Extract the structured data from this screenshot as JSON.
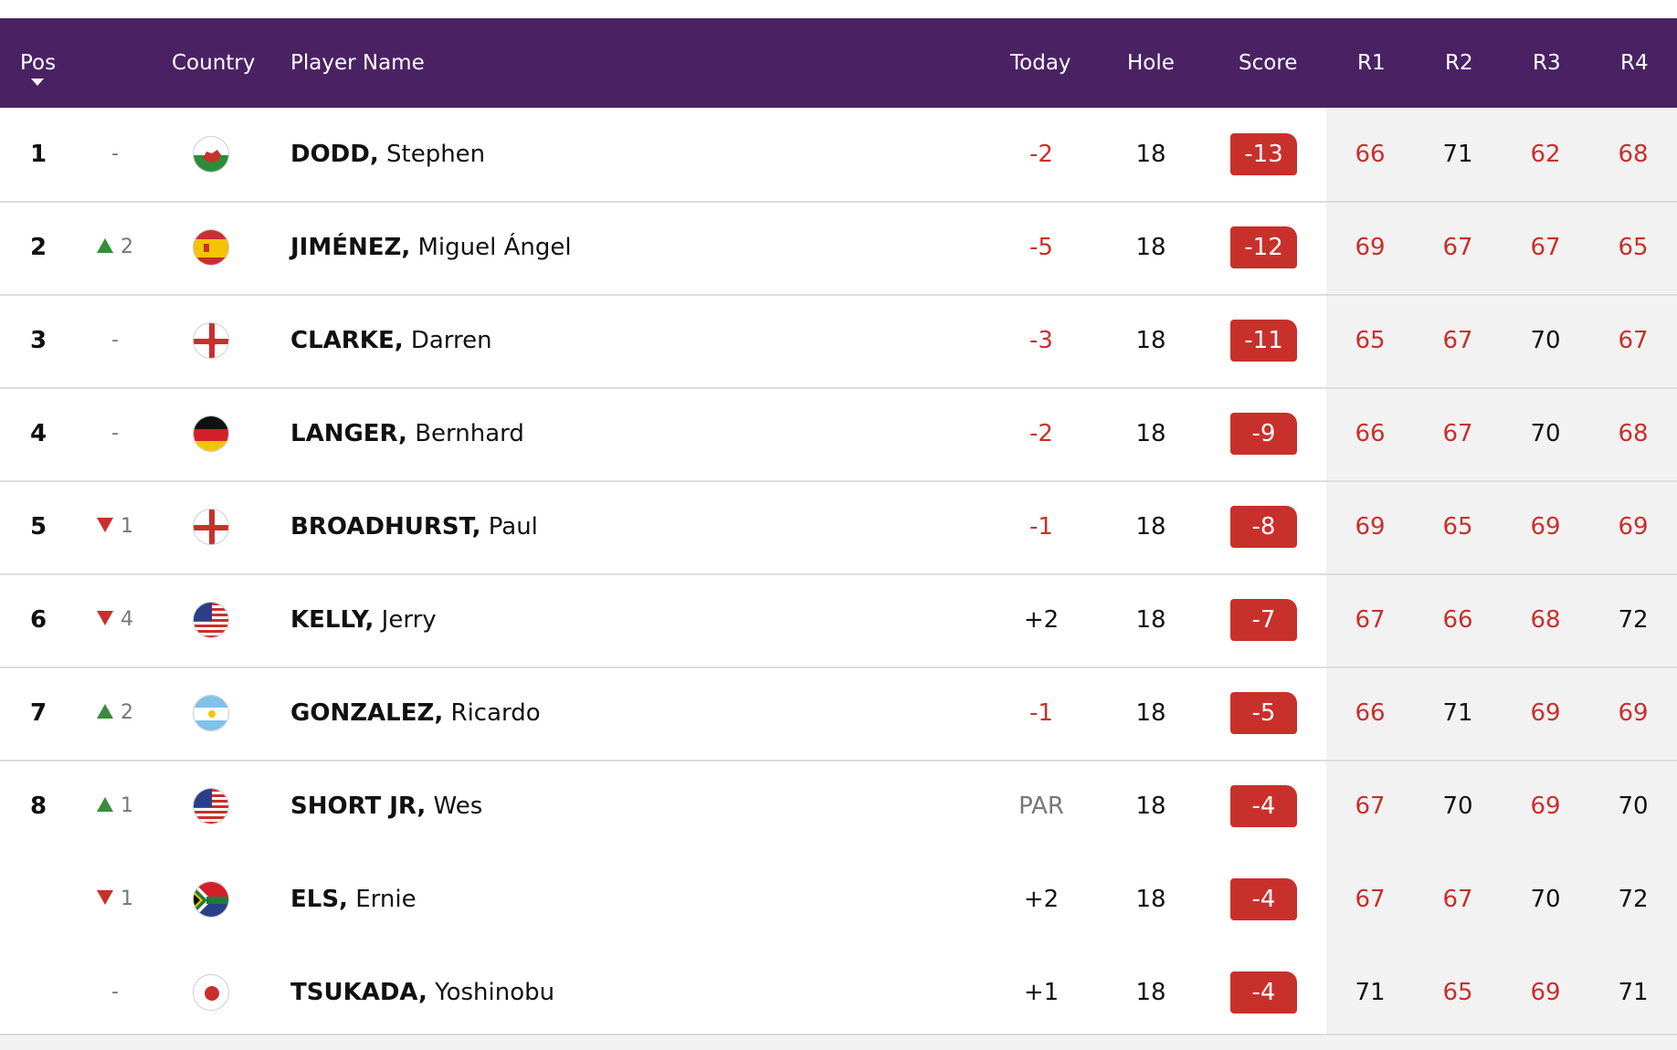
{
  "colors": {
    "header_bg": "#4a2263",
    "under_par": "#c8302c",
    "up": "#3a8c3a",
    "down": "#c8302c"
  },
  "header": {
    "pos": "Pos",
    "country": "Country",
    "player": "Player Name",
    "today": "Today",
    "hole": "Hole",
    "score": "Score",
    "r1": "R1",
    "r2": "R2",
    "r3": "R3",
    "r4": "R4"
  },
  "rows": [
    {
      "pos": "1",
      "move": "-",
      "move_dir": "none",
      "flag": "wales-flag-icon",
      "surname": "DODD,",
      "first": "Stephen",
      "today": "-2",
      "hole": "18",
      "score": "-13",
      "r1": "66",
      "r2": "71",
      "r3": "62",
      "r4": "68"
    },
    {
      "pos": "2",
      "move": "2",
      "move_dir": "up",
      "flag": "spain-flag-icon",
      "surname": "JIMÉNEZ,",
      "first": "Miguel Ángel",
      "today": "-5",
      "hole": "18",
      "score": "-12",
      "r1": "69",
      "r2": "67",
      "r3": "67",
      "r4": "65"
    },
    {
      "pos": "3",
      "move": "-",
      "move_dir": "none",
      "flag": "northern-ireland-flag-icon",
      "surname": "CLARKE,",
      "first": "Darren",
      "today": "-3",
      "hole": "18",
      "score": "-11",
      "r1": "65",
      "r2": "67",
      "r3": "70",
      "r4": "67"
    },
    {
      "pos": "4",
      "move": "-",
      "move_dir": "none",
      "flag": "germany-flag-icon",
      "surname": "LANGER,",
      "first": "Bernhard",
      "today": "-2",
      "hole": "18",
      "score": "-9",
      "r1": "66",
      "r2": "67",
      "r3": "70",
      "r4": "68"
    },
    {
      "pos": "5",
      "move": "1",
      "move_dir": "down",
      "flag": "england-flag-icon",
      "surname": "BROADHURST,",
      "first": "Paul",
      "today": "-1",
      "hole": "18",
      "score": "-8",
      "r1": "69",
      "r2": "65",
      "r3": "69",
      "r4": "69"
    },
    {
      "pos": "6",
      "move": "4",
      "move_dir": "down",
      "flag": "usa-flag-icon",
      "surname": "KELLY,",
      "first": "Jerry",
      "today": "+2",
      "hole": "18",
      "score": "-7",
      "r1": "67",
      "r2": "66",
      "r3": "68",
      "r4": "72"
    },
    {
      "pos": "7",
      "move": "2",
      "move_dir": "up",
      "flag": "argentina-flag-icon",
      "surname": "GONZALEZ,",
      "first": "Ricardo",
      "today": "-1",
      "hole": "18",
      "score": "-5",
      "r1": "66",
      "r2": "71",
      "r3": "69",
      "r4": "69"
    },
    {
      "pos": "8",
      "move": "1",
      "move_dir": "up",
      "flag": "usa-flag-icon",
      "surname": "SHORT JR,",
      "first": "Wes",
      "today": "PAR",
      "hole": "18",
      "score": "-4",
      "r1": "67",
      "r2": "70",
      "r3": "69",
      "r4": "70"
    },
    {
      "pos": "",
      "move": "1",
      "move_dir": "down",
      "flag": "south-africa-flag-icon",
      "surname": "ELS,",
      "first": "Ernie",
      "today": "+2",
      "hole": "18",
      "score": "-4",
      "r1": "67",
      "r2": "67",
      "r3": "70",
      "r4": "72"
    },
    {
      "pos": "",
      "move": "-",
      "move_dir": "none",
      "flag": "japan-flag-icon",
      "surname": "TSUKADA,",
      "first": "Yoshinobu",
      "today": "+1",
      "hole": "18",
      "score": "-4",
      "r1": "71",
      "r2": "65",
      "r3": "69",
      "r4": "71"
    }
  ]
}
